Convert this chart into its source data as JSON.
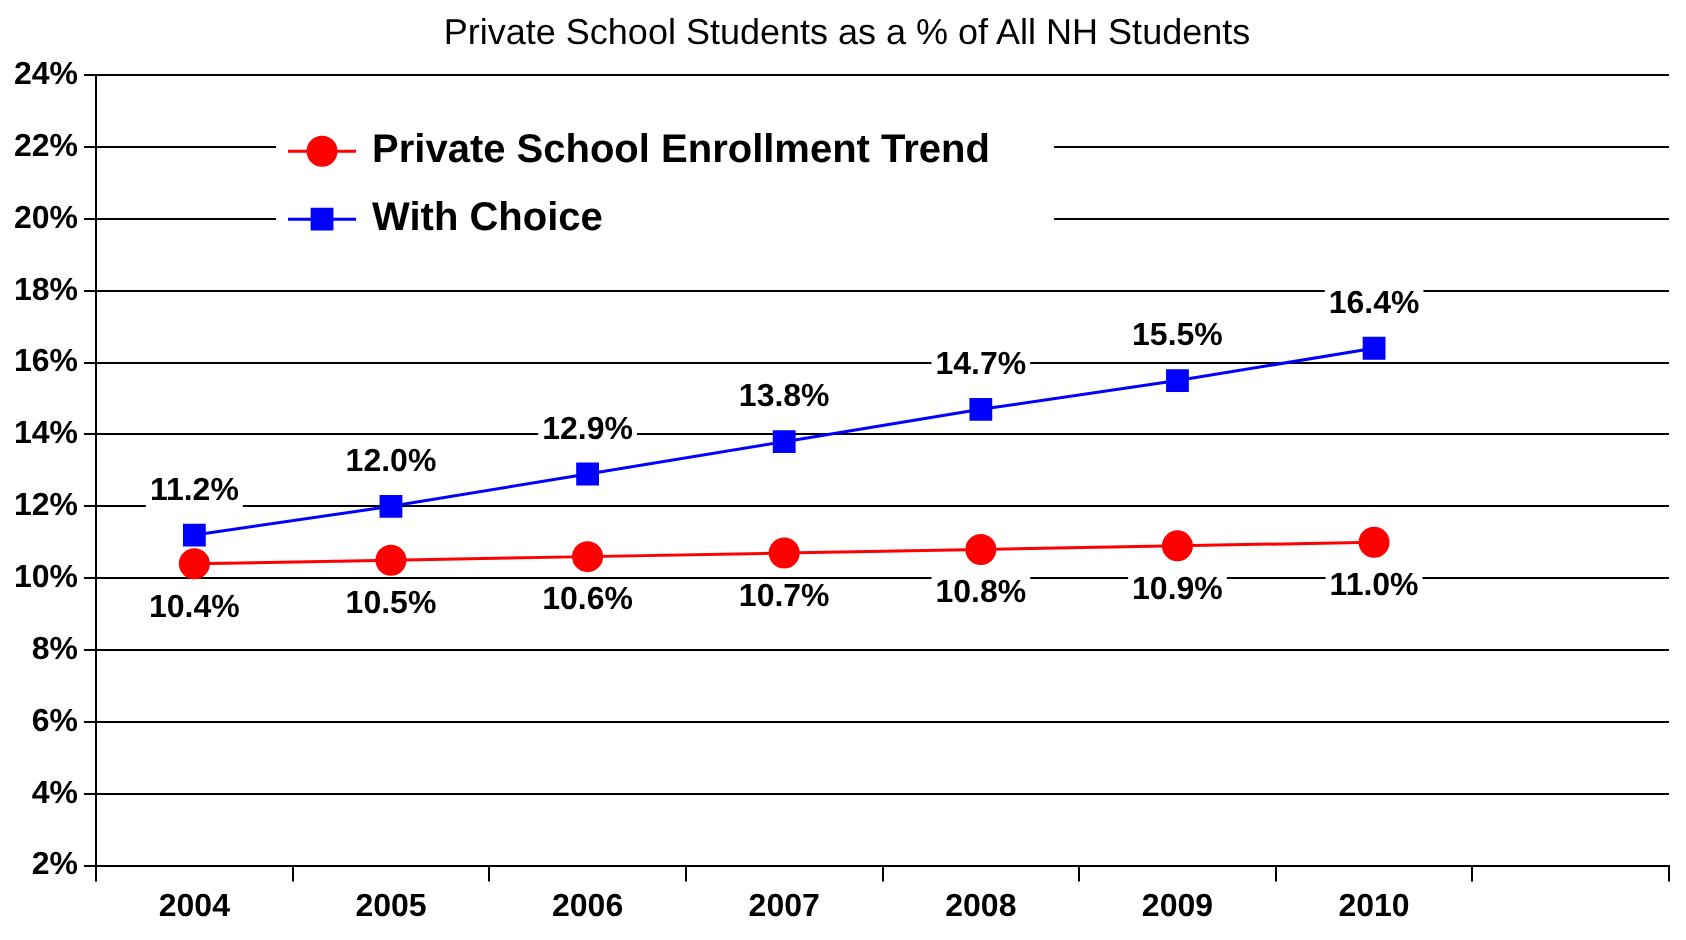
{
  "chart_data": {
    "type": "line",
    "title": "Private School Students as a % of All NH Students",
    "categories": [
      "2004",
      "2005",
      "2006",
      "2007",
      "2008",
      "2009",
      "2010",
      null
    ],
    "series": [
      {
        "name": "Private School Enrollment Trend",
        "color": "#ff0000",
        "marker": "circle",
        "values": [
          10.4,
          10.5,
          10.6,
          10.7,
          10.8,
          10.9,
          11.0,
          null
        ],
        "value_labels": [
          "10.4%",
          "10.5%",
          "10.6%",
          "10.7%",
          "10.8%",
          "10.9%",
          "11.0%",
          null
        ]
      },
      {
        "name": "With Choice",
        "color": "#0000ff",
        "marker": "square",
        "values": [
          11.2,
          12.0,
          12.9,
          13.8,
          14.7,
          15.5,
          16.4,
          null
        ],
        "value_labels": [
          "11.2%",
          "12.0%",
          "12.9%",
          "13.8%",
          "14.7%",
          "15.5%",
          "16.4%",
          null
        ]
      }
    ],
    "ylim": [
      2,
      24
    ],
    "yticks": [
      {
        "value": 2,
        "label": "2%"
      },
      {
        "value": 4,
        "label": "4%"
      },
      {
        "value": 6,
        "label": "6%"
      },
      {
        "value": 8,
        "label": "8%"
      },
      {
        "value": 10,
        "label": "10%"
      },
      {
        "value": 12,
        "label": "12%"
      },
      {
        "value": 14,
        "label": "14%"
      },
      {
        "value": 16,
        "label": "16%"
      },
      {
        "value": 18,
        "label": "18%"
      },
      {
        "value": 20,
        "label": "20%"
      },
      {
        "value": 22,
        "label": "22%"
      },
      {
        "value": 24,
        "label": "24%"
      }
    ],
    "grid": "y",
    "legend": "top left",
    "line_style": "solid"
  }
}
